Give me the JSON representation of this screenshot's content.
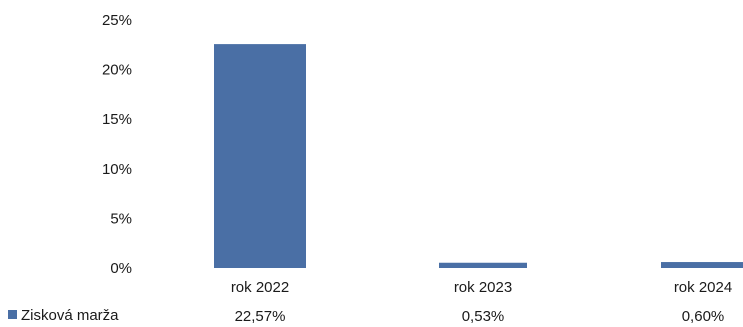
{
  "chart_data": {
    "type": "bar",
    "categories": [
      "rok 2022",
      "rok 2023",
      "rok 2024"
    ],
    "series": [
      {
        "name": "Zisková marža",
        "values": [
          22.57,
          0.53,
          0.6
        ],
        "labels": [
          "22,57%",
          "0,53%",
          "0,60%"
        ],
        "color": "#4a6fa5"
      }
    ],
    "yticks": [
      "0%",
      "5%",
      "10%",
      "15%",
      "20%",
      "25%"
    ],
    "ylim": [
      0,
      25
    ],
    "grid": false,
    "legend": "bottom-left",
    "data_table": true
  }
}
